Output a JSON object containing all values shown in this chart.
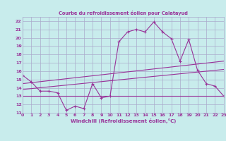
{
  "title": "Courbe du refroidissement éolien pour Calatayud",
  "xlabel": "Windchill (Refroidissement éolien,°C)",
  "bg_color": "#c8ecec",
  "grid_color": "#aaaacc",
  "line_color": "#993399",
  "xlim": [
    0,
    23
  ],
  "ylim": [
    11,
    22.5
  ],
  "yticks": [
    11,
    12,
    13,
    14,
    15,
    16,
    17,
    18,
    19,
    20,
    21,
    22
  ],
  "xticks": [
    0,
    1,
    2,
    3,
    4,
    5,
    6,
    7,
    8,
    9,
    10,
    11,
    12,
    13,
    14,
    15,
    16,
    17,
    18,
    19,
    20,
    21,
    22,
    23
  ],
  "line1_x": [
    0,
    1,
    2,
    3,
    4,
    5,
    6,
    7,
    8,
    9,
    10,
    11,
    12,
    13,
    14,
    15,
    16,
    17,
    18,
    19,
    20,
    21,
    22,
    23
  ],
  "line1_y": [
    15.5,
    14.7,
    13.6,
    13.6,
    13.4,
    11.3,
    11.8,
    11.5,
    14.5,
    12.8,
    13.0,
    19.5,
    20.7,
    21.0,
    20.7,
    21.9,
    20.7,
    19.9,
    17.2,
    19.8,
    16.1,
    14.5,
    14.2,
    13.0
  ],
  "line2_x": [
    0,
    23
  ],
  "line2_y": [
    13.0,
    13.0
  ],
  "line3_x": [
    0,
    23
  ],
  "line3_y": [
    13.8,
    16.2
  ],
  "line4_x": [
    0,
    23
  ],
  "line4_y": [
    14.5,
    17.2
  ]
}
